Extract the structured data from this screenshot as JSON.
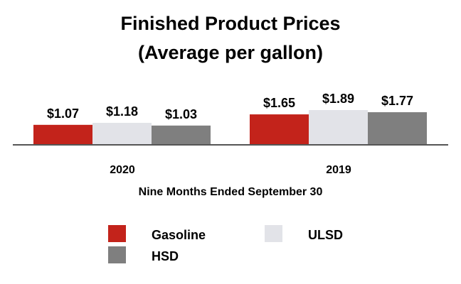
{
  "chart_data": {
    "type": "bar",
    "title": "Finished Product Prices",
    "subtitle": "(Average per gallon)",
    "xlabel": "Nine Months Ended September 30",
    "ylabel": "",
    "categories": [
      "2020",
      "2019"
    ],
    "series": [
      {
        "name": "Gasoline",
        "values": [
          1.07,
          1.65
        ],
        "labels": [
          "$1.07",
          "$1.65"
        ],
        "color": "#c3231b"
      },
      {
        "name": "ULSD",
        "values": [
          1.18,
          1.89
        ],
        "labels": [
          "$1.18",
          "$1.89"
        ],
        "color": "#e2e3e8"
      },
      {
        "name": "HSD",
        "values": [
          1.03,
          1.77
        ],
        "labels": [
          "$1.03",
          "$1.77"
        ],
        "color": "#7f7f7f"
      }
    ],
    "ylim": [
      0,
      1.89
    ],
    "grid": false,
    "axis_color": "#555555",
    "legend_placement": "bottom"
  }
}
